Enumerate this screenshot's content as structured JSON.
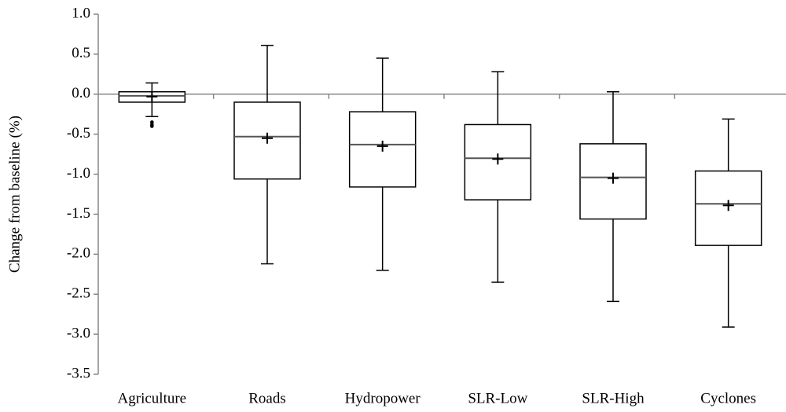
{
  "chart_data": {
    "type": "box",
    "y_label": "Change from baseline (%)",
    "categories": [
      "Agriculture",
      "Roads",
      "Hydropower",
      "SLR-Low",
      "SLR-High",
      "Cyclones"
    ],
    "boxes": [
      {
        "min": -0.28,
        "q1": -0.1,
        "median": -0.02,
        "q3": 0.03,
        "max": 0.14,
        "mean": -0.03,
        "outliers": [
          -0.35,
          -0.38,
          -0.4
        ]
      },
      {
        "min": -2.12,
        "q1": -1.06,
        "median": -0.53,
        "q3": -0.1,
        "max": 0.61,
        "mean": -0.55,
        "outliers": []
      },
      {
        "min": -2.2,
        "q1": -1.16,
        "median": -0.63,
        "q3": -0.22,
        "max": 0.45,
        "mean": -0.65,
        "outliers": []
      },
      {
        "min": -2.35,
        "q1": -1.32,
        "median": -0.8,
        "q3": -0.38,
        "max": 0.28,
        "mean": -0.81,
        "outliers": []
      },
      {
        "min": -2.59,
        "q1": -1.56,
        "median": -1.04,
        "q3": -0.62,
        "max": 0.03,
        "mean": -1.05,
        "outliers": []
      },
      {
        "min": -2.91,
        "q1": -1.89,
        "median": -1.37,
        "q3": -0.96,
        "max": -0.31,
        "mean": -1.39,
        "outliers": []
      }
    ],
    "ylim": [
      -3.5,
      1.0
    ],
    "yticks": [
      {
        "value": -3.5,
        "label": "-3.5"
      },
      {
        "value": -3.0,
        "label": "-3.0"
      },
      {
        "value": -2.5,
        "label": "-2.5"
      },
      {
        "value": -2.0,
        "label": "-2.0"
      },
      {
        "value": -1.5,
        "label": "-1.5"
      },
      {
        "value": -1.0,
        "label": "-1.0"
      },
      {
        "value": -0.5,
        "label": "-0.5"
      },
      {
        "value": 0.0,
        "label": "0.0"
      },
      {
        "value": 0.5,
        "label": "0.5"
      },
      {
        "value": 1.0,
        "label": "1.0"
      }
    ],
    "grid": false
  }
}
